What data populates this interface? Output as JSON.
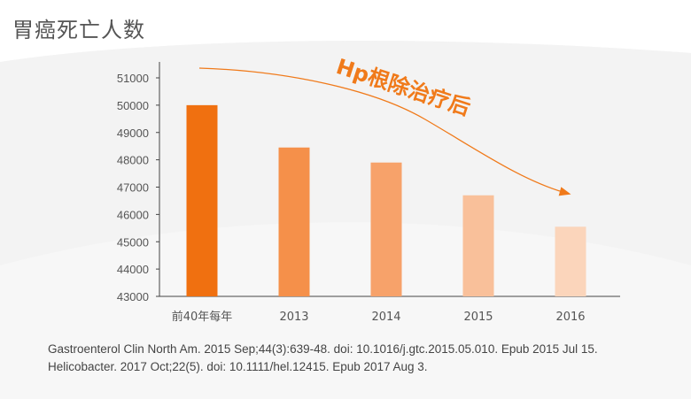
{
  "page_title": "胃癌死亡人数",
  "annotation": "Hp根除治疗后",
  "citations": [
    "Gastroenterol Clin North Am. 2015 Sep;44(3):639-48. doi: 10.1016/j.gtc.2015.05.010. Epub 2015 Jul 15.",
    "Helicobacter. 2017 Oct;22(5). doi: 10.1111/hel.12415. Epub 2017 Aug 3."
  ],
  "colors": {
    "bars": [
      "#f07010",
      "#f5904a",
      "#f7a26a",
      "#f9c09a",
      "#fbd5bb"
    ],
    "axis": "#444444",
    "annotation": "#f07a1a"
  },
  "chart_data": {
    "type": "bar",
    "categories": [
      "前40年每年",
      "2013",
      "2014",
      "2015",
      "2016"
    ],
    "values": [
      50000,
      48450,
      47900,
      46700,
      45550
    ],
    "ylim": [
      43000,
      51000
    ],
    "yticks": [
      43000,
      44000,
      45000,
      46000,
      47000,
      48000,
      49000,
      50000,
      51000
    ],
    "grid": false,
    "trend_arrow": "decreasing"
  }
}
